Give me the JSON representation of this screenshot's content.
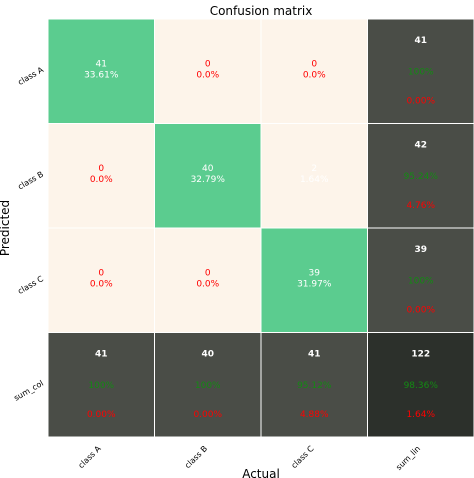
{
  "chart_data": {
    "type": "heatmap",
    "title": "Confusion matrix",
    "xlabel": "Actual",
    "ylabel": "Predicted",
    "x_categories": [
      "class A",
      "class B",
      "class C",
      "sum_lin"
    ],
    "y_categories": [
      "class A",
      "class B",
      "class C",
      "sum_col"
    ],
    "matrix": [
      [
        41,
        0,
        0
      ],
      [
        0,
        40,
        2
      ],
      [
        0,
        0,
        39
      ]
    ],
    "cells": [
      [
        {
          "count": "41",
          "pct": "33.61%"
        },
        {
          "count": "0",
          "pct": "0.0%"
        },
        {
          "count": "0",
          "pct": "0.0%"
        }
      ],
      [
        {
          "count": "0",
          "pct": "0.0%"
        },
        {
          "count": "40",
          "pct": "32.79%"
        },
        {
          "count": "2",
          "pct": "1.64%"
        }
      ],
      [
        {
          "count": "0",
          "pct": "0.0%"
        },
        {
          "count": "0",
          "pct": "0.0%"
        },
        {
          "count": "39",
          "pct": "31.97%"
        }
      ]
    ],
    "row_totals": [
      {
        "total": "41",
        "correct": "100%",
        "error": "0.00%"
      },
      {
        "total": "42",
        "correct": "95.24%",
        "error": "4.76%"
      },
      {
        "total": "39",
        "correct": "100%",
        "error": "0.00%"
      }
    ],
    "col_totals": [
      {
        "total": "41",
        "correct": "100%",
        "error": "0.00%"
      },
      {
        "total": "40",
        "correct": "100%",
        "error": "0.00%"
      },
      {
        "total": "41",
        "correct": "95.12%",
        "error": "4.88%"
      }
    ],
    "grand_total": {
      "total": "122",
      "correct": "98.36%",
      "error": "1.64%"
    },
    "colors": {
      "diagonal": "#5bcc8f",
      "off_diagonal": "#fdf4ea",
      "summary": "#4a4d47",
      "grand": "#2c302b",
      "correct_text": "#138a13",
      "error_text": "#ff0000",
      "zero_text": "#ff0000",
      "light_text": "#ffffff"
    }
  }
}
